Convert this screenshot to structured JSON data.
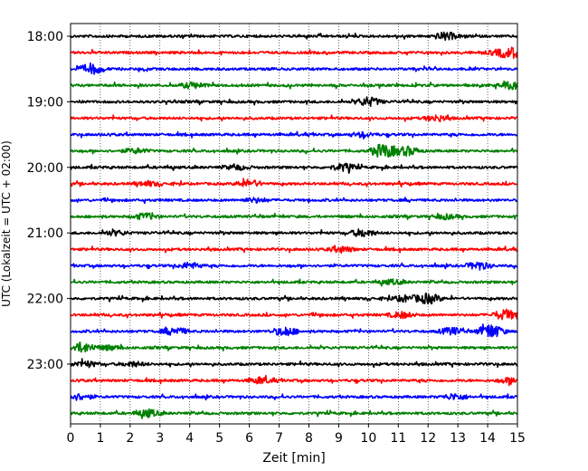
{
  "chart_data": {
    "type": "line",
    "xlabel": "Zeit  [min]",
    "ylabel": "UTC (Lokalzeit = UTC + 02:00)",
    "xlim": [
      0,
      15
    ],
    "x_ticks": [
      "0",
      "1",
      "2",
      "3",
      "4",
      "5",
      "6",
      "7",
      "8",
      "9",
      "10",
      "11",
      "12",
      "13",
      "14",
      "15"
    ],
    "y_ticks": [
      "18:00",
      "19:00",
      "20:00",
      "21:00",
      "22:00",
      "23:00"
    ],
    "grid": "vertical dotted",
    "colors": [
      "#000000",
      "#ff0000",
      "#0000ff",
      "#008000"
    ],
    "traces": [
      {
        "start": "18:00",
        "color": "#000000",
        "events": [
          [
            12.6,
            0.5
          ]
        ]
      },
      {
        "start": "18:15",
        "color": "#ff0000",
        "events": [
          [
            14.9,
            0.6
          ],
          [
            14.4,
            0.4
          ]
        ]
      },
      {
        "start": "18:30",
        "color": "#0000ff",
        "events": [
          [
            0.7,
            0.7
          ]
        ]
      },
      {
        "start": "18:45",
        "color": "#008000",
        "events": [
          [
            4.1,
            0.4
          ],
          [
            14.8,
            0.5
          ]
        ]
      },
      {
        "start": "19:00",
        "color": "#000000",
        "events": [
          [
            10.0,
            0.6
          ]
        ]
      },
      {
        "start": "19:15",
        "color": "#ff0000",
        "events": [
          [
            12.3,
            0.4
          ]
        ]
      },
      {
        "start": "19:30",
        "color": "#0000ff",
        "events": [
          [
            9.8,
            0.3
          ]
        ]
      },
      {
        "start": "19:45",
        "color": "#008000",
        "events": [
          [
            10.5,
            1.0
          ],
          [
            11.3,
            0.6
          ],
          [
            2.2,
            0.3
          ]
        ]
      },
      {
        "start": "20:00",
        "color": "#000000",
        "events": [
          [
            9.2,
            0.5
          ],
          [
            5.6,
            0.3
          ]
        ]
      },
      {
        "start": "20:15",
        "color": "#ff0000",
        "events": [
          [
            6.0,
            0.5
          ],
          [
            2.6,
            0.3
          ]
        ]
      },
      {
        "start": "20:30",
        "color": "#0000ff",
        "events": [
          [
            6.2,
            0.3
          ]
        ]
      },
      {
        "start": "20:45",
        "color": "#008000",
        "events": [
          [
            2.5,
            0.4
          ],
          [
            12.6,
            0.3
          ]
        ]
      },
      {
        "start": "21:00",
        "color": "#000000",
        "events": [
          [
            9.8,
            0.5
          ],
          [
            1.5,
            0.3
          ]
        ]
      },
      {
        "start": "21:15",
        "color": "#ff0000",
        "events": [
          [
            9.1,
            0.4
          ]
        ]
      },
      {
        "start": "21:30",
        "color": "#0000ff",
        "events": [
          [
            4.0,
            0.4
          ],
          [
            13.7,
            0.5
          ]
        ]
      },
      {
        "start": "21:45",
        "color": "#008000",
        "events": [
          [
            10.8,
            0.3
          ]
        ]
      },
      {
        "start": "22:00",
        "color": "#000000",
        "events": [
          [
            12.0,
            0.7
          ],
          [
            11.2,
            0.4
          ]
        ]
      },
      {
        "start": "22:15",
        "color": "#ff0000",
        "events": [
          [
            14.6,
            0.7
          ],
          [
            11.1,
            0.4
          ]
        ]
      },
      {
        "start": "22:30",
        "color": "#0000ff",
        "events": [
          [
            14.1,
            1.0
          ],
          [
            7.2,
            0.6
          ],
          [
            3.5,
            0.5
          ],
          [
            12.8,
            0.5
          ]
        ]
      },
      {
        "start": "22:45",
        "color": "#008000",
        "events": [
          [
            0.4,
            0.7
          ],
          [
            1.3,
            0.3
          ]
        ]
      },
      {
        "start": "23:00",
        "color": "#000000",
        "events": [
          [
            0.5,
            0.4
          ],
          [
            2.1,
            0.3
          ]
        ]
      },
      {
        "start": "23:15",
        "color": "#ff0000",
        "events": [
          [
            6.4,
            0.4
          ],
          [
            14.8,
            0.4
          ]
        ]
      },
      {
        "start": "23:30",
        "color": "#0000ff",
        "events": [
          [
            0.3,
            0.4
          ],
          [
            12.9,
            0.4
          ]
        ]
      },
      {
        "start": "23:45",
        "color": "#008000",
        "events": [
          [
            2.6,
            0.5
          ]
        ]
      }
    ]
  }
}
